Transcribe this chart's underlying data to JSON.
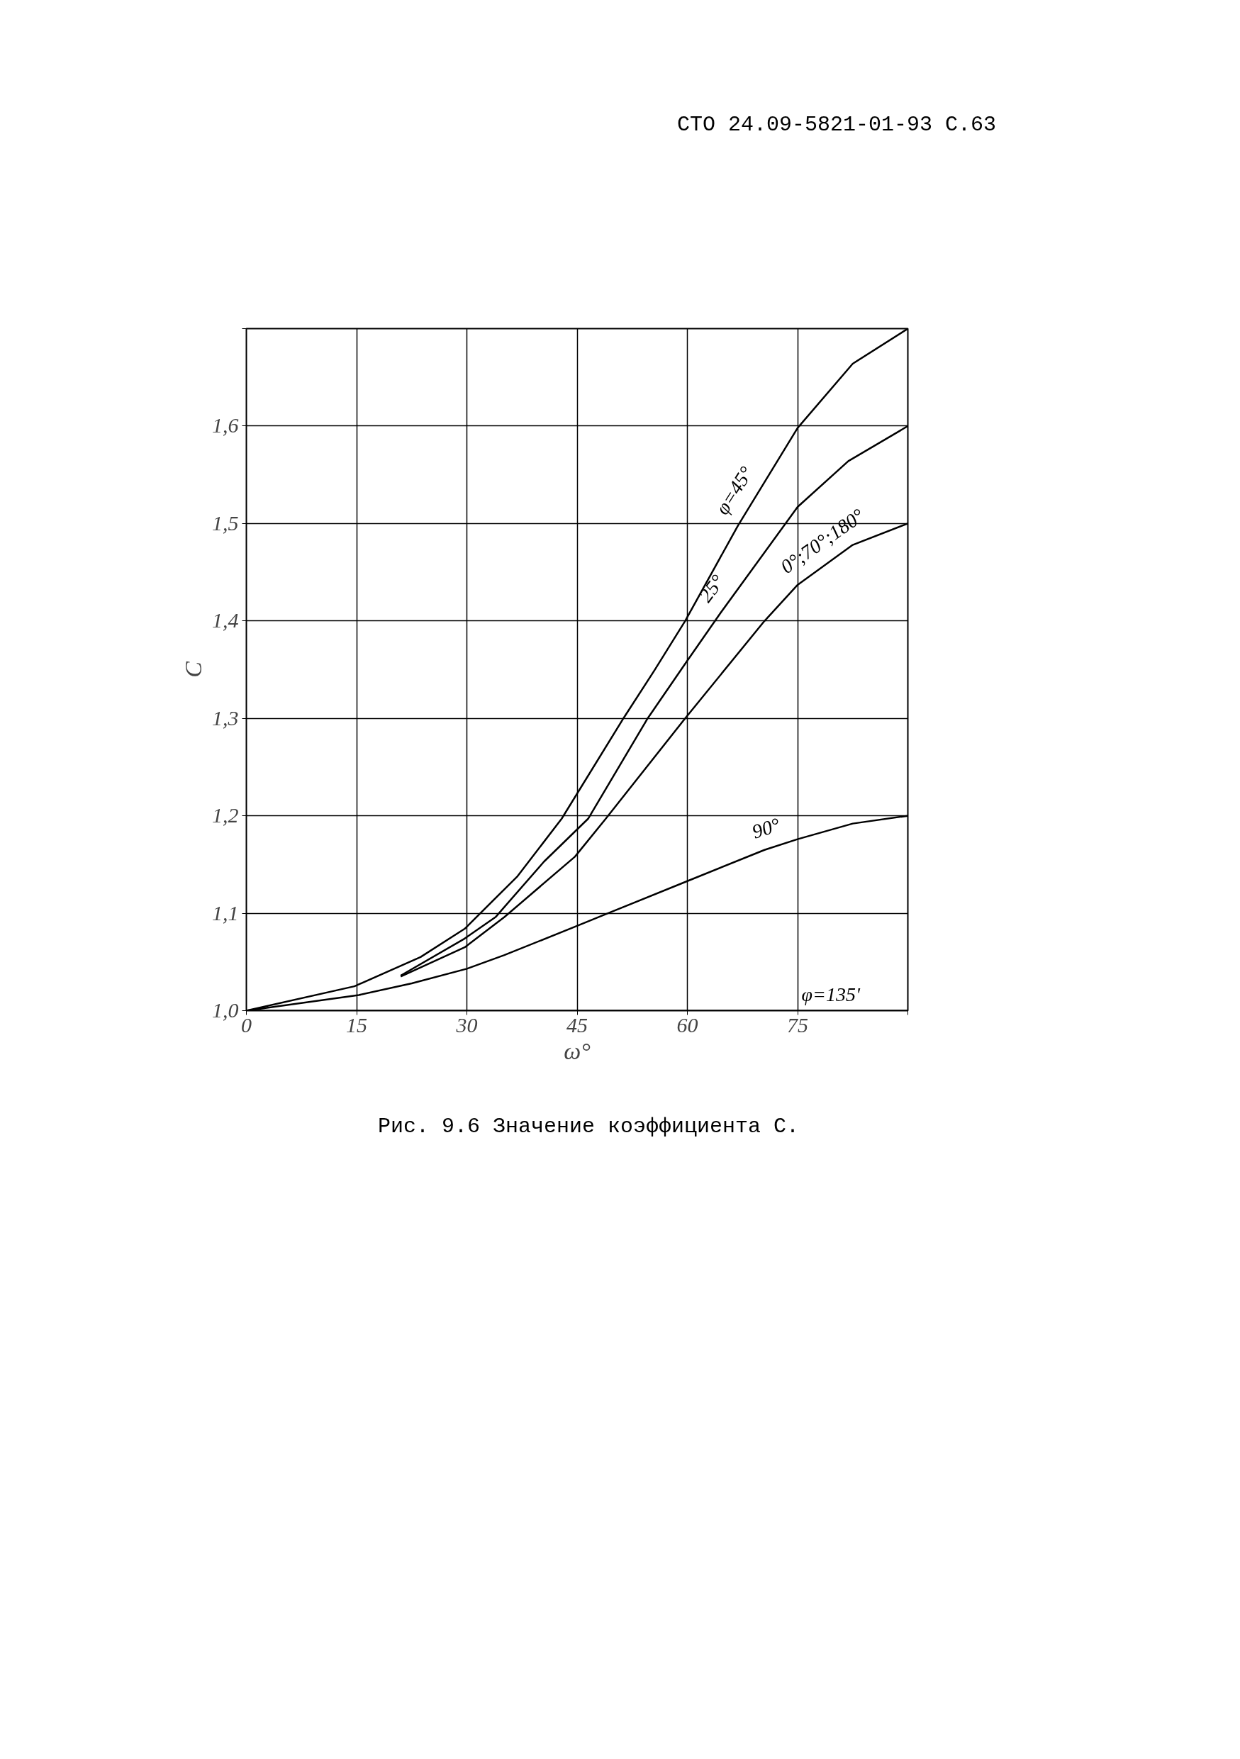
{
  "chart_data": {
    "type": "line",
    "xlabel": "ω°",
    "ylabel": "C",
    "annotations": [
      "СТО 24.09-5821-01-93 С.63",
      "Рис. 9.6 Значение коэффициента С."
    ],
    "xlim": [
      0,
      90
    ],
    "ylim": [
      1.0,
      1.7
    ],
    "xticks": [
      0,
      15,
      30,
      45,
      60,
      75,
      {
        "value": 90,
        "label": null
      }
    ],
    "yticks": [
      {
        "value": 1.0,
        "label": "1,0"
      },
      {
        "value": 1.1,
        "label": "1,1"
      },
      {
        "value": 1.2,
        "label": "1,2"
      },
      {
        "value": 1.3,
        "label": "1,3"
      },
      {
        "value": 1.4,
        "label": "1,4"
      },
      {
        "value": 1.5,
        "label": "1,5"
      },
      {
        "value": 1.6,
        "label": "1,6"
      },
      {
        "value": 1.7,
        "label": null
      }
    ],
    "grid": true,
    "marker": "none",
    "line_style": "solid",
    "series": [
      {
        "name": "φ=45°",
        "color": "#000000",
        "x": [
          0,
          14.7,
          23.7,
          29.7,
          36.9,
          42.9,
          51.3,
          55.5,
          59.7,
          66.9,
          75,
          82.5,
          90
        ],
        "values": [
          1.0,
          1.025,
          1.055,
          1.084,
          1.138,
          1.197,
          1.3,
          1.349,
          1.4,
          1.498,
          1.598,
          1.664,
          1.7
        ]
      },
      {
        "name": "25°",
        "color": "#000000",
        "x": [
          21,
          29.7,
          33.9,
          40.5,
          46.5,
          54.6,
          59.7,
          64.5,
          75,
          81.9,
          90
        ],
        "values": [
          1.036,
          1.074,
          1.096,
          1.153,
          1.197,
          1.3,
          1.356,
          1.408,
          1.517,
          1.564,
          1.6
        ]
      },
      {
        "name": "0°;70°;180°",
        "color": "#000000",
        "x": [
          21,
          29.7,
          35.1,
          44.7,
          48.9,
          59.7,
          70.5,
          75,
          82.5,
          90
        ],
        "values": [
          1.035,
          1.065,
          1.096,
          1.158,
          1.197,
          1.3,
          1.4,
          1.437,
          1.478,
          1.5
        ]
      },
      {
        "name": "90°",
        "color": "#000000",
        "x": [
          0,
          15.3,
          22.5,
          30,
          35.1,
          45,
          48.9,
          60,
          70.5,
          75,
          82.5,
          90
        ],
        "values": [
          1.0,
          1.016,
          1.028,
          1.043,
          1.057,
          1.087,
          1.099,
          1.133,
          1.165,
          1.176,
          1.192,
          1.2
        ]
      },
      {
        "name": "φ=135'",
        "color": "#000000",
        "x": [
          0,
          90
        ],
        "values": [
          1.0,
          1.0
        ]
      }
    ]
  }
}
